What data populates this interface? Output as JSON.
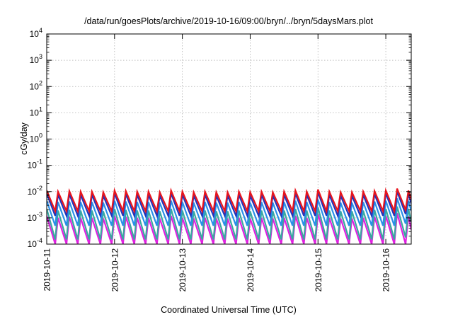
{
  "chart_data": {
    "type": "line",
    "title": "/data/run/goesPlots/archive/2019-10-16/09:00/bryn/../bryn/5daysMars.plot",
    "xlabel": "Coordinated Universal Time (UTC)",
    "ylabel": "cGy/day",
    "y_scale": "log",
    "ylim": [
      0.0001,
      10000
    ],
    "y_ticks": [
      {
        "value": 0.0001,
        "base": "10",
        "exp": "-4"
      },
      {
        "value": 0.001,
        "base": "10",
        "exp": "-3"
      },
      {
        "value": 0.01,
        "base": "10",
        "exp": "-2"
      },
      {
        "value": 0.1,
        "base": "10",
        "exp": "-1"
      },
      {
        "value": 1,
        "base": "10",
        "exp": "0"
      },
      {
        "value": 10,
        "base": "10",
        "exp": "1"
      },
      {
        "value": 100,
        "base": "10",
        "exp": "2"
      },
      {
        "value": 1000,
        "base": "10",
        "exp": "3"
      },
      {
        "value": 10000,
        "base": "10",
        "exp": "4"
      }
    ],
    "x_range": [
      "2019-10-11T00:00",
      "2019-10-16T09:00"
    ],
    "x_ticks": [
      "2019-10-11",
      "2019-10-12",
      "2019-10-13",
      "2019-10-14",
      "2019-10-15",
      "2019-10-16"
    ],
    "grid": true,
    "legend": "none",
    "series": [
      {
        "color": "#e8141c",
        "x": [
          "2019-10-11T00:00",
          "2019-10-11T03:00",
          "2019-10-11T04:00",
          "2019-10-11T07:00",
          "2019-10-11T08:00",
          "2019-10-11T11:00",
          "2019-10-11T12:00",
          "2019-10-11T15:00",
          "2019-10-11T16:00",
          "2019-10-11T19:00",
          "2019-10-11T20:00",
          "2019-10-11T23:00",
          "2019-10-12T00:00",
          "2019-10-12T03:00",
          "2019-10-12T04:00",
          "2019-10-12T07:00",
          "2019-10-12T08:00",
          "2019-10-12T11:00",
          "2019-10-12T12:00",
          "2019-10-12T15:00",
          "2019-10-12T16:00",
          "2019-10-12T19:00",
          "2019-10-12T20:00",
          "2019-10-12T23:00",
          "2019-10-13T00:00",
          "2019-10-13T03:00",
          "2019-10-13T04:00",
          "2019-10-13T07:00",
          "2019-10-13T08:00",
          "2019-10-13T11:00",
          "2019-10-13T12:00",
          "2019-10-13T15:00",
          "2019-10-13T16:00",
          "2019-10-13T19:00",
          "2019-10-13T20:00",
          "2019-10-13T23:00",
          "2019-10-14T00:00",
          "2019-10-14T03:00",
          "2019-10-14T04:00",
          "2019-10-14T07:00",
          "2019-10-14T08:00",
          "2019-10-14T11:00",
          "2019-10-14T12:00",
          "2019-10-14T15:00",
          "2019-10-14T16:00",
          "2019-10-14T19:00",
          "2019-10-14T20:00",
          "2019-10-14T23:00",
          "2019-10-15T00:00",
          "2019-10-15T03:00",
          "2019-10-15T04:00",
          "2019-10-15T07:00",
          "2019-10-15T08:00",
          "2019-10-15T11:00",
          "2019-10-15T12:00",
          "2019-10-15T15:00",
          "2019-10-15T16:00",
          "2019-10-15T19:00",
          "2019-10-15T20:00",
          "2019-10-15T23:00",
          "2019-10-16T00:00",
          "2019-10-16T03:00",
          "2019-10-16T04:00",
          "2019-10-16T07:00",
          "2019-10-16T08:00",
          "2019-10-16T09:00"
        ],
        "y": [
          0.011,
          0.0018,
          0.01,
          0.0018,
          0.0105,
          0.0018,
          0.01,
          0.0018,
          0.01,
          0.0018,
          0.0095,
          0.0018,
          0.011,
          0.0018,
          0.0105,
          0.0018,
          0.01,
          0.0018,
          0.01,
          0.0018,
          0.0095,
          0.0018,
          0.011,
          0.0018,
          0.01,
          0.0018,
          0.0095,
          0.0018,
          0.01,
          0.0018,
          0.0095,
          0.0018,
          0.0095,
          0.0018,
          0.01,
          0.0018,
          0.0095,
          0.0018,
          0.01,
          0.0018,
          0.0095,
          0.0018,
          0.01,
          0.0018,
          0.011,
          0.0018,
          0.01,
          0.0018,
          0.012,
          0.0018,
          0.01,
          0.0018,
          0.0095,
          0.0018,
          0.0095,
          0.0018,
          0.01,
          0.0018,
          0.0105,
          0.0018,
          0.011,
          0.0018,
          0.013,
          0.002,
          0.011,
          0.005
        ]
      },
      {
        "color": "#2233bb",
        "x": [
          "2019-10-11T00:00",
          "2019-10-11T03:00",
          "2019-10-11T04:00",
          "2019-10-11T07:00",
          "2019-10-11T08:00",
          "2019-10-11T11:00",
          "2019-10-11T12:00",
          "2019-10-11T15:00",
          "2019-10-11T16:00",
          "2019-10-11T19:00",
          "2019-10-11T20:00",
          "2019-10-11T23:00",
          "2019-10-12T00:00",
          "2019-10-12T03:00",
          "2019-10-12T04:00",
          "2019-10-12T07:00",
          "2019-10-12T08:00",
          "2019-10-12T11:00",
          "2019-10-12T12:00",
          "2019-10-12T15:00",
          "2019-10-12T16:00",
          "2019-10-12T19:00",
          "2019-10-12T20:00",
          "2019-10-12T23:00",
          "2019-10-13T00:00",
          "2019-10-13T03:00",
          "2019-10-13T04:00",
          "2019-10-13T07:00",
          "2019-10-13T08:00",
          "2019-10-13T11:00",
          "2019-10-13T12:00",
          "2019-10-13T15:00",
          "2019-10-13T16:00",
          "2019-10-13T19:00",
          "2019-10-13T20:00",
          "2019-10-13T23:00",
          "2019-10-14T00:00",
          "2019-10-14T03:00",
          "2019-10-14T04:00",
          "2019-10-14T07:00",
          "2019-10-14T08:00",
          "2019-10-14T11:00",
          "2019-10-14T12:00",
          "2019-10-14T15:00",
          "2019-10-14T16:00",
          "2019-10-14T19:00",
          "2019-10-14T20:00",
          "2019-10-14T23:00",
          "2019-10-15T00:00",
          "2019-10-15T03:00",
          "2019-10-15T04:00",
          "2019-10-15T07:00",
          "2019-10-15T08:00",
          "2019-10-15T11:00",
          "2019-10-15T12:00",
          "2019-10-15T15:00",
          "2019-10-15T16:00",
          "2019-10-15T19:00",
          "2019-10-15T20:00",
          "2019-10-15T23:00",
          "2019-10-16T00:00",
          "2019-10-16T03:00",
          "2019-10-16T04:00",
          "2019-10-16T07:00",
          "2019-10-16T08:00",
          "2019-10-16T09:00"
        ],
        "y": [
          0.0085,
          0.0012,
          0.0075,
          0.0012,
          0.008,
          0.0012,
          0.0075,
          0.0012,
          0.0075,
          0.0012,
          0.007,
          0.0012,
          0.0085,
          0.0012,
          0.008,
          0.0012,
          0.0075,
          0.0012,
          0.0075,
          0.0012,
          0.007,
          0.0012,
          0.0085,
          0.0012,
          0.0075,
          0.0012,
          0.007,
          0.0012,
          0.0075,
          0.0012,
          0.007,
          0.0012,
          0.007,
          0.0012,
          0.0075,
          0.0012,
          0.007,
          0.0012,
          0.0075,
          0.0012,
          0.007,
          0.0012,
          0.0075,
          0.0012,
          0.0085,
          0.0012,
          0.0075,
          0.0012,
          0.0095,
          0.0012,
          0.0075,
          0.0012,
          0.007,
          0.0012,
          0.007,
          0.0012,
          0.0075,
          0.0012,
          0.008,
          0.0012,
          0.0085,
          0.0012,
          0.01,
          0.0014,
          0.0085,
          0.0035
        ]
      },
      {
        "color": "#2a8fe8",
        "x": [
          "2019-10-11T00:00",
          "2019-10-11T03:00",
          "2019-10-11T04:00",
          "2019-10-11T07:00",
          "2019-10-11T08:00",
          "2019-10-11T11:00",
          "2019-10-11T12:00",
          "2019-10-11T15:00",
          "2019-10-11T16:00",
          "2019-10-11T19:00",
          "2019-10-11T20:00",
          "2019-10-11T23:00",
          "2019-10-12T00:00",
          "2019-10-12T03:00",
          "2019-10-12T04:00",
          "2019-10-12T07:00",
          "2019-10-12T08:00",
          "2019-10-12T11:00",
          "2019-10-12T12:00",
          "2019-10-12T15:00",
          "2019-10-12T16:00",
          "2019-10-12T19:00",
          "2019-10-12T20:00",
          "2019-10-12T23:00",
          "2019-10-13T00:00",
          "2019-10-13T03:00",
          "2019-10-13T04:00",
          "2019-10-13T07:00",
          "2019-10-13T08:00",
          "2019-10-13T11:00",
          "2019-10-13T12:00",
          "2019-10-13T15:00",
          "2019-10-13T16:00",
          "2019-10-13T19:00",
          "2019-10-13T20:00",
          "2019-10-13T23:00",
          "2019-10-14T00:00",
          "2019-10-14T03:00",
          "2019-10-14T04:00",
          "2019-10-14T07:00",
          "2019-10-14T08:00",
          "2019-10-14T11:00",
          "2019-10-14T12:00",
          "2019-10-14T15:00",
          "2019-10-14T16:00",
          "2019-10-14T19:00",
          "2019-10-14T20:00",
          "2019-10-14T23:00",
          "2019-10-15T00:00",
          "2019-10-15T03:00",
          "2019-10-15T04:00",
          "2019-10-15T07:00",
          "2019-10-15T08:00",
          "2019-10-15T11:00",
          "2019-10-15T12:00",
          "2019-10-15T15:00",
          "2019-10-15T16:00",
          "2019-10-15T19:00",
          "2019-10-15T20:00",
          "2019-10-15T23:00",
          "2019-10-16T00:00",
          "2019-10-16T03:00",
          "2019-10-16T04:00",
          "2019-10-16T07:00",
          "2019-10-16T08:00",
          "2019-10-16T09:00"
        ],
        "y": [
          0.0045,
          0.0005,
          0.004,
          0.0005,
          0.0042,
          0.0005,
          0.004,
          0.0005,
          0.004,
          0.0005,
          0.0038,
          0.0005,
          0.0045,
          0.0005,
          0.0042,
          0.0005,
          0.004,
          0.0005,
          0.004,
          0.0005,
          0.0038,
          0.0005,
          0.0045,
          0.0005,
          0.004,
          0.0005,
          0.0038,
          0.0005,
          0.004,
          0.0005,
          0.0038,
          0.0005,
          0.0038,
          0.0005,
          0.004,
          0.0005,
          0.0038,
          0.0005,
          0.004,
          0.0005,
          0.0038,
          0.0005,
          0.004,
          0.0005,
          0.0045,
          0.0005,
          0.004,
          0.0005,
          0.005,
          0.0005,
          0.004,
          0.0005,
          0.0038,
          0.0005,
          0.0038,
          0.0005,
          0.004,
          0.0005,
          0.0042,
          0.0005,
          0.0045,
          0.0005,
          0.0055,
          0.0006,
          0.0045,
          0.0018
        ]
      },
      {
        "color": "#3aa8a0",
        "x": [
          "2019-10-11T00:00",
          "2019-10-11T03:00",
          "2019-10-11T04:00",
          "2019-10-11T07:00",
          "2019-10-11T08:00",
          "2019-10-11T11:00",
          "2019-10-11T12:00",
          "2019-10-11T15:00",
          "2019-10-11T16:00",
          "2019-10-11T19:00",
          "2019-10-11T20:00",
          "2019-10-11T23:00",
          "2019-10-12T00:00",
          "2019-10-12T03:00",
          "2019-10-12T04:00",
          "2019-10-12T07:00",
          "2019-10-12T08:00",
          "2019-10-12T11:00",
          "2019-10-12T12:00",
          "2019-10-12T15:00",
          "2019-10-12T16:00",
          "2019-10-12T19:00",
          "2019-10-12T20:00",
          "2019-10-12T23:00",
          "2019-10-13T00:00",
          "2019-10-13T03:00",
          "2019-10-13T04:00",
          "2019-10-13T07:00",
          "2019-10-13T08:00",
          "2019-10-13T11:00",
          "2019-10-13T12:00",
          "2019-10-13T15:00",
          "2019-10-13T16:00",
          "2019-10-13T19:00",
          "2019-10-13T20:00",
          "2019-10-13T23:00",
          "2019-10-14T00:00",
          "2019-10-14T03:00",
          "2019-10-14T04:00",
          "2019-10-14T07:00",
          "2019-10-14T08:00",
          "2019-10-14T11:00",
          "2019-10-14T12:00",
          "2019-10-14T15:00",
          "2019-10-14T16:00",
          "2019-10-14T19:00",
          "2019-10-14T20:00",
          "2019-10-14T23:00",
          "2019-10-15T00:00",
          "2019-10-15T03:00",
          "2019-10-15T04:00",
          "2019-10-15T07:00",
          "2019-10-15T08:00",
          "2019-10-15T11:00",
          "2019-10-15T12:00",
          "2019-10-15T15:00",
          "2019-10-15T16:00",
          "2019-10-15T19:00",
          "2019-10-15T20:00",
          "2019-10-15T23:00",
          "2019-10-16T00:00",
          "2019-10-16T03:00",
          "2019-10-16T04:00",
          "2019-10-16T07:00",
          "2019-10-16T08:00",
          "2019-10-16T09:00"
        ],
        "y": [
          0.0022,
          0.00015,
          0.0019,
          0.00015,
          0.002,
          0.00015,
          0.0019,
          0.00015,
          0.0019,
          0.00015,
          0.0018,
          0.00015,
          0.0022,
          0.00015,
          0.002,
          0.00015,
          0.0019,
          0.00015,
          0.0019,
          0.00015,
          0.0018,
          0.00015,
          0.0022,
          0.00015,
          0.0019,
          0.00015,
          0.0018,
          0.00015,
          0.0019,
          0.00015,
          0.0018,
          0.00015,
          0.0018,
          0.00015,
          0.0019,
          0.00015,
          0.0018,
          0.00015,
          0.0019,
          0.00015,
          0.0018,
          0.00015,
          0.0019,
          0.00015,
          0.0022,
          0.00015,
          0.0019,
          0.00015,
          0.0025,
          0.00015,
          0.0019,
          0.00015,
          0.0018,
          0.00015,
          0.0018,
          0.00015,
          0.0019,
          0.00015,
          0.002,
          0.00015,
          0.0022,
          0.00015,
          0.0027,
          0.00018,
          0.0022,
          0.0007
        ]
      },
      {
        "color": "#e020e0",
        "x": [
          "2019-10-11T00:00",
          "2019-10-11T03:00",
          "2019-10-11T04:00",
          "2019-10-11T07:00",
          "2019-10-11T08:00",
          "2019-10-11T11:00",
          "2019-10-11T12:00",
          "2019-10-11T15:00",
          "2019-10-11T16:00",
          "2019-10-11T19:00",
          "2019-10-11T20:00",
          "2019-10-11T23:00",
          "2019-10-12T00:00",
          "2019-10-12T03:00",
          "2019-10-12T04:00",
          "2019-10-12T07:00",
          "2019-10-12T08:00",
          "2019-10-12T11:00",
          "2019-10-12T12:00",
          "2019-10-12T15:00",
          "2019-10-12T16:00",
          "2019-10-12T19:00",
          "2019-10-12T20:00",
          "2019-10-12T23:00",
          "2019-10-13T00:00",
          "2019-10-13T03:00",
          "2019-10-13T04:00",
          "2019-10-13T07:00",
          "2019-10-13T08:00",
          "2019-10-13T11:00",
          "2019-10-13T12:00",
          "2019-10-13T15:00",
          "2019-10-13T16:00",
          "2019-10-13T19:00",
          "2019-10-13T20:00",
          "2019-10-13T23:00",
          "2019-10-14T00:00",
          "2019-10-14T03:00",
          "2019-10-14T04:00",
          "2019-10-14T07:00",
          "2019-10-14T08:00",
          "2019-10-14T11:00",
          "2019-10-14T12:00",
          "2019-10-14T15:00",
          "2019-10-14T16:00",
          "2019-10-14T19:00",
          "2019-10-14T20:00",
          "2019-10-14T23:00",
          "2019-10-15T00:00",
          "2019-10-15T03:00",
          "2019-10-15T04:00",
          "2019-10-15T07:00",
          "2019-10-15T08:00",
          "2019-10-15T11:00",
          "2019-10-15T12:00",
          "2019-10-15T15:00",
          "2019-10-15T16:00",
          "2019-10-15T19:00",
          "2019-10-15T20:00",
          "2019-10-15T23:00",
          "2019-10-16T00:00",
          "2019-10-16T03:00",
          "2019-10-16T04:00",
          "2019-10-16T07:00",
          "2019-10-16T08:00",
          "2019-10-16T09:00"
        ],
        "y": [
          0.0012,
          0.0001,
          0.001,
          0.0001,
          0.0011,
          0.0001,
          0.001,
          0.0001,
          0.001,
          0.0001,
          0.00095,
          0.0001,
          0.0012,
          0.0001,
          0.0011,
          0.0001,
          0.001,
          0.0001,
          0.001,
          0.0001,
          0.00095,
          0.0001,
          0.0012,
          0.0001,
          0.001,
          0.0001,
          0.00095,
          0.0001,
          0.001,
          0.0001,
          0.00095,
          0.0001,
          0.00095,
          0.0001,
          0.001,
          0.0001,
          0.00095,
          0.0001,
          0.001,
          0.0001,
          0.00095,
          0.0001,
          0.001,
          0.0001,
          0.0012,
          0.0001,
          0.001,
          0.0001,
          0.0014,
          0.0001,
          0.001,
          0.0001,
          0.00095,
          0.0001,
          0.00095,
          0.0001,
          0.001,
          0.0001,
          0.0011,
          0.0001,
          0.0012,
          0.0001,
          0.0015,
          0.0001,
          0.0012,
          0.00035
        ]
      }
    ]
  }
}
